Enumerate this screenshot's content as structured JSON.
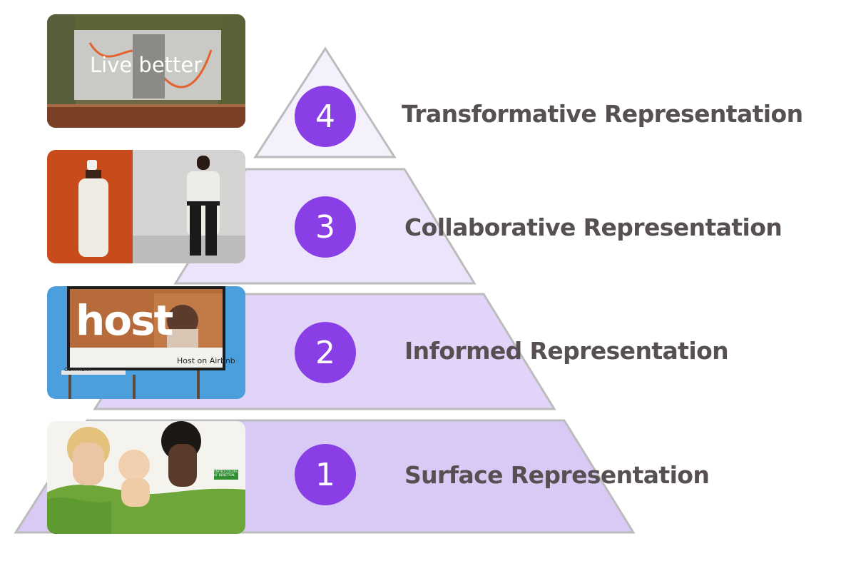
{
  "colors": {
    "badge": "#8a3ee6",
    "label": "#575052",
    "tier_fills": [
      "#d9c9f5",
      "#e1d4f8",
      "#ece4fa",
      "#f4f0fc"
    ],
    "outline": "#bcbcbc"
  },
  "tiers": [
    {
      "number": "4",
      "label": "Transformative Representation",
      "image": "billboard-live-better"
    },
    {
      "number": "3",
      "label": "Collaborative Representation",
      "image": "runway-models"
    },
    {
      "number": "2",
      "label": "Informed Representation",
      "image": "airbnb-host-billboard"
    },
    {
      "number": "1",
      "label": "Surface Representation",
      "image": "benetton-ad"
    }
  ],
  "images": {
    "live_better_text": "Live better",
    "host_headline": "host",
    "host_caption": "Host on Airbnb",
    "host_frame_tag": "OUTFRONT",
    "benetton_tag": "UNITED COLORS OF BENETTON."
  }
}
